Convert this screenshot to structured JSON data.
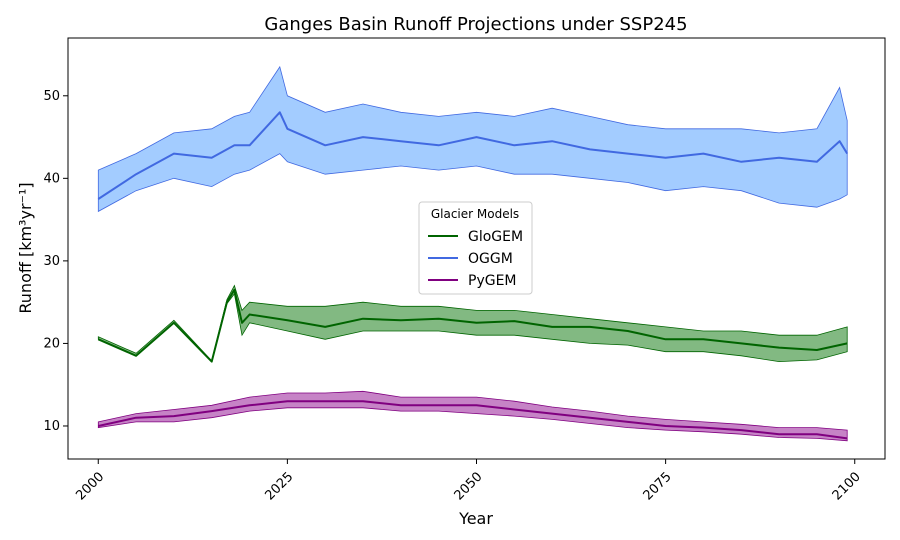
{
  "chart_data": {
    "type": "line",
    "title": "Ganges Basin Runoff Projections under SSP245",
    "xlabel": "Year",
    "ylabel": "Runoff [km³yr⁻¹]",
    "xlim": [
      1996,
      2104
    ],
    "ylim": [
      6,
      57
    ],
    "xticks": [
      2000,
      2025,
      2050,
      2075,
      2100
    ],
    "yticks": [
      10,
      20,
      30,
      40,
      50
    ],
    "grid": false,
    "legend": {
      "title": "Glacier Models",
      "placement": "center"
    },
    "series": [
      {
        "name": "GloGEM",
        "color": "#006400",
        "fill": "#2e8b2e",
        "x": [
          2000,
          2005,
          2010,
          2015,
          2017,
          2018,
          2019,
          2020,
          2025,
          2030,
          2035,
          2040,
          2045,
          2050,
          2055,
          2060,
          2065,
          2070,
          2075,
          2080,
          2085,
          2090,
          2095,
          2099
        ],
        "y": [
          20.5,
          18.5,
          22.5,
          17.8,
          25.0,
          26.5,
          22.5,
          23.5,
          22.8,
          22.0,
          23.0,
          22.8,
          23.0,
          22.5,
          22.7,
          22.0,
          22.0,
          21.5,
          20.5,
          20.5,
          20.0,
          19.5,
          19.2,
          20.0
        ],
        "lower": [
          20.5,
          18.5,
          22.5,
          17.8,
          24.8,
          26.0,
          21.0,
          22.5,
          21.5,
          20.5,
          21.5,
          21.5,
          21.5,
          21.0,
          21.0,
          20.5,
          20.0,
          19.8,
          19.0,
          19.0,
          18.5,
          17.8,
          18.0,
          19.0
        ],
        "upper": [
          20.8,
          18.8,
          22.8,
          17.9,
          25.3,
          27.0,
          24.0,
          25.0,
          24.5,
          24.5,
          25.0,
          24.5,
          24.5,
          24.0,
          24.0,
          23.5,
          23.0,
          22.5,
          22.0,
          21.5,
          21.5,
          21.0,
          21.0,
          22.0
        ]
      },
      {
        "name": "OGGM",
        "color": "#4169e1",
        "fill": "#66aaff",
        "x": [
          2000,
          2005,
          2010,
          2015,
          2018,
          2020,
          2024,
          2025,
          2030,
          2035,
          2040,
          2045,
          2050,
          2055,
          2060,
          2065,
          2070,
          2075,
          2080,
          2085,
          2090,
          2095,
          2098,
          2099
        ],
        "y": [
          37.5,
          40.5,
          43.0,
          42.5,
          44.0,
          44.0,
          48.0,
          46.0,
          44.0,
          45.0,
          44.5,
          44.0,
          45.0,
          44.0,
          44.5,
          43.5,
          43.0,
          42.5,
          43.0,
          42.0,
          42.5,
          42.0,
          44.5,
          43.0
        ],
        "lower": [
          36.0,
          38.5,
          40.0,
          39.0,
          40.5,
          41.0,
          43.0,
          42.0,
          40.5,
          41.0,
          41.5,
          41.0,
          41.5,
          40.5,
          40.5,
          40.0,
          39.5,
          38.5,
          39.0,
          38.5,
          37.0,
          36.5,
          37.5,
          38.0
        ],
        "upper": [
          41.0,
          43.0,
          45.5,
          46.0,
          47.5,
          48.0,
          53.5,
          50.0,
          48.0,
          49.0,
          48.0,
          47.5,
          48.0,
          47.5,
          48.5,
          47.5,
          46.5,
          46.0,
          46.0,
          46.0,
          45.5,
          46.0,
          51.0,
          47.0
        ]
      },
      {
        "name": "PyGEM",
        "color": "#800080",
        "fill": "#a030a0",
        "x": [
          2000,
          2005,
          2010,
          2015,
          2020,
          2025,
          2030,
          2035,
          2040,
          2045,
          2050,
          2055,
          2060,
          2065,
          2070,
          2075,
          2080,
          2085,
          2090,
          2095,
          2099
        ],
        "y": [
          10.0,
          11.0,
          11.2,
          11.8,
          12.5,
          13.0,
          13.0,
          13.0,
          12.5,
          12.5,
          12.5,
          12.0,
          11.5,
          11.0,
          10.5,
          10.0,
          9.8,
          9.5,
          9.0,
          9.0,
          8.5
        ],
        "lower": [
          9.8,
          10.5,
          10.5,
          11.0,
          11.8,
          12.2,
          12.2,
          12.2,
          11.8,
          11.8,
          11.5,
          11.2,
          10.8,
          10.3,
          9.8,
          9.5,
          9.3,
          9.0,
          8.6,
          8.5,
          8.2
        ],
        "upper": [
          10.5,
          11.5,
          12.0,
          12.5,
          13.5,
          14.0,
          14.0,
          14.2,
          13.5,
          13.5,
          13.5,
          13.0,
          12.3,
          11.8,
          11.2,
          10.8,
          10.5,
          10.2,
          9.8,
          9.8,
          9.5
        ]
      }
    ]
  }
}
